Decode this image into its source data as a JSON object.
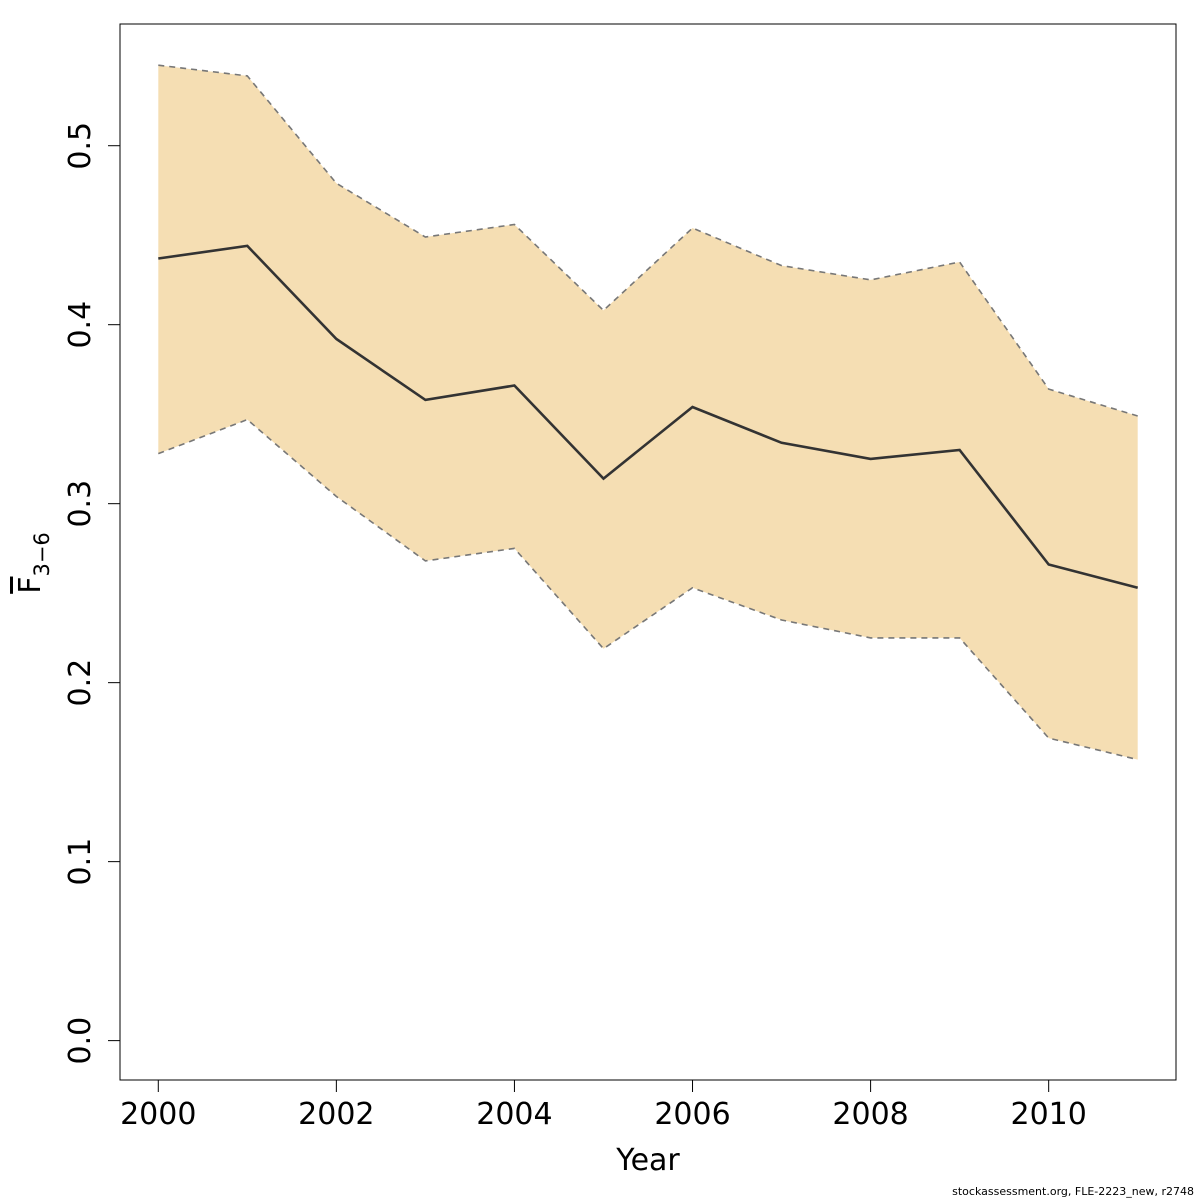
{
  "chart_data": {
    "type": "line",
    "x": [
      2000,
      2001,
      2002,
      2003,
      2004,
      2005,
      2006,
      2007,
      2008,
      2009,
      2010,
      2011
    ],
    "series": [
      {
        "role": "estimate",
        "values": [
          0.437,
          0.444,
          0.392,
          0.358,
          0.366,
          0.314,
          0.354,
          0.334,
          0.325,
          0.33,
          0.266,
          0.253
        ]
      },
      {
        "role": "upper",
        "values": [
          0.545,
          0.539,
          0.479,
          0.449,
          0.456,
          0.408,
          0.454,
          0.433,
          0.425,
          0.435,
          0.364,
          0.349
        ]
      },
      {
        "role": "lower",
        "values": [
          0.328,
          0.347,
          0.304,
          0.268,
          0.275,
          0.219,
          0.253,
          0.235,
          0.225,
          0.225,
          0.169,
          0.157
        ]
      }
    ],
    "xlabel": "Year",
    "ylabel_main": "F",
    "ylabel_sub": "3−6",
    "x_ticks": [
      "2000",
      "2002",
      "2004",
      "2006",
      "2008",
      "2010"
    ],
    "y_ticks": [
      "0.0",
      "0.1",
      "0.2",
      "0.3",
      "0.4",
      "0.5"
    ],
    "xlim": [
      1999.57,
      2011.43
    ],
    "ylim": [
      -0.022,
      0.568
    ],
    "grid": false,
    "legend": "none",
    "colors": {
      "band": "#f5deb3",
      "band_edge": "#777777",
      "line": "#333333",
      "axis": "#000000"
    }
  },
  "footer": "stockassessment.org, FLE-2223_new, r2748"
}
